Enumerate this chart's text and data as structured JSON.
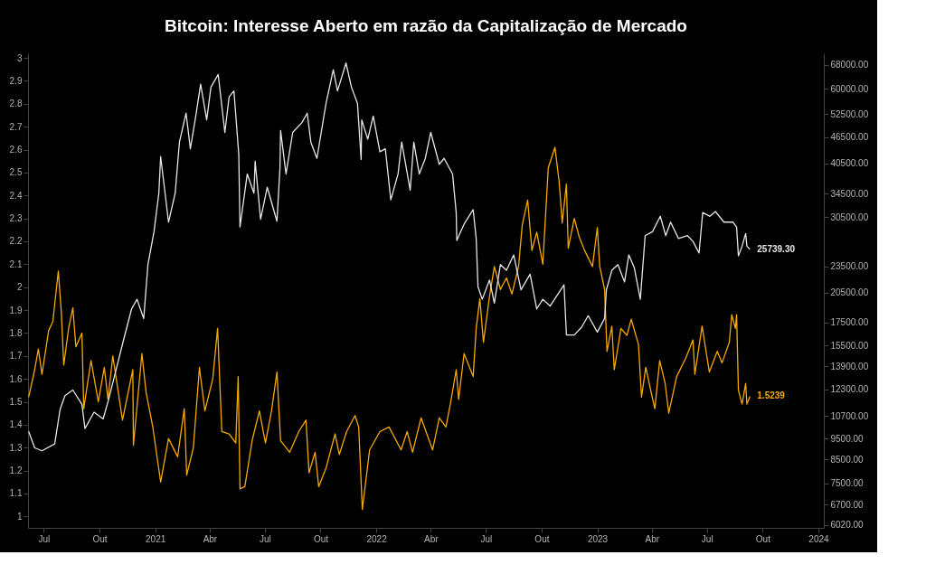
{
  "chart_data": {
    "type": "line",
    "title": "Bitcoin: Interesse Aberto em razão da Capitalização de Mercado",
    "xlim": [
      "2020-06-05",
      "2024-01-10"
    ],
    "xticks": [
      {
        "value": "2020-07-01",
        "label": "Jul"
      },
      {
        "value": "2020-10-01",
        "label": "Out"
      },
      {
        "value": "2021-01-01",
        "label": "2021"
      },
      {
        "value": "2021-04-01",
        "label": "Abr"
      },
      {
        "value": "2021-07-01",
        "label": "Jul"
      },
      {
        "value": "2021-10-01",
        "label": "Out"
      },
      {
        "value": "2022-01-01",
        "label": "2022"
      },
      {
        "value": "2022-04-01",
        "label": "Abr"
      },
      {
        "value": "2022-07-01",
        "label": "Jul"
      },
      {
        "value": "2022-10-01",
        "label": "Out"
      },
      {
        "value": "2023-01-01",
        "label": "2023"
      },
      {
        "value": "2023-04-01",
        "label": "Abr"
      },
      {
        "value": "2023-07-01",
        "label": "Jul"
      },
      {
        "value": "2023-10-01",
        "label": "Out"
      },
      {
        "value": "2024-01-01",
        "label": "2024"
      }
    ],
    "ylim": [
      0.95,
      3.02
    ],
    "yticks": [
      1,
      1.1,
      1.2,
      1.3,
      1.4,
      1.5,
      1.6,
      1.7,
      1.8,
      1.9,
      2,
      2.1,
      2.2,
      2.3,
      2.4,
      2.5,
      2.6,
      2.7,
      2.8,
      2.9,
      3
    ],
    "y2lim": [
      5930,
      72300
    ],
    "y2ticks": [
      {
        "value": 6020,
        "label": "6020.00"
      },
      {
        "value": 6700,
        "label": "6700.00"
      },
      {
        "value": 7500,
        "label": "7500.00"
      },
      {
        "value": 8500,
        "label": "8500.00"
      },
      {
        "value": 9500,
        "label": "9500.00"
      },
      {
        "value": 10700,
        "label": "10700.00"
      },
      {
        "value": 12300,
        "label": "12300.00"
      },
      {
        "value": 13900,
        "label": "13900.00"
      },
      {
        "value": 15500,
        "label": "15500.00"
      },
      {
        "value": 17500,
        "label": "17500.00"
      },
      {
        "value": 20500,
        "label": "20500.00"
      },
      {
        "value": 23500,
        "label": "23500.00"
      },
      {
        "value": 30500,
        "label": "30500.00"
      },
      {
        "value": 34500,
        "label": "34500.00"
      },
      {
        "value": 40500,
        "label": "40500.00"
      },
      {
        "value": 46500,
        "label": "46500.00"
      },
      {
        "value": 52500,
        "label": "52500.00"
      },
      {
        "value": 60000,
        "label": "60000.00"
      },
      {
        "value": 68000,
        "label": "68000.00"
      }
    ],
    "log": "y2",
    "grid": false,
    "line_style": "solid",
    "marker": "none",
    "annotations": [
      "1.5239",
      "25739.30"
    ],
    "series": [
      {
        "color": "#f5a900",
        "x": [
          "2020-06-06",
          "2020-06-16",
          "2020-06-22",
          "2020-06-28",
          "2020-07-09",
          "2020-07-16",
          "2020-07-25",
          "2020-07-30",
          "2020-08-03",
          "2020-08-11",
          "2020-08-18",
          "2020-08-23",
          "2020-09-02",
          "2020-09-05",
          "2020-09-17",
          "2020-09-29",
          "2020-10-09",
          "2020-10-15",
          "2020-10-23",
          "2020-11-08",
          "2020-11-25",
          "2020-11-26",
          "2020-12-10",
          "2020-12-17",
          "2020-12-28",
          "2021-01-10",
          "2021-01-23",
          "2021-02-07",
          "2021-02-18",
          "2021-02-22",
          "2021-03-05",
          "2021-03-15",
          "2021-03-24",
          "2021-04-06",
          "2021-04-14",
          "2021-04-21",
          "2021-05-03",
          "2021-05-14",
          "2021-05-18",
          "2021-05-21",
          "2021-05-29",
          "2021-06-10",
          "2021-06-22",
          "2021-07-02",
          "2021-07-12",
          "2021-07-21",
          "2021-07-27",
          "2021-08-11",
          "2021-08-26",
          "2021-09-07",
          "2021-09-12",
          "2021-09-22",
          "2021-09-28",
          "2021-10-10",
          "2021-10-25",
          "2021-11-01",
          "2021-11-13",
          "2021-11-27",
          "2021-12-03",
          "2021-12-09",
          "2021-12-21",
          "2022-01-07",
          "2022-01-22",
          "2022-02-11",
          "2022-02-21",
          "2022-03-02",
          "2022-03-16",
          "2022-04-04",
          "2022-04-15",
          "2022-04-26",
          "2022-05-04",
          "2022-05-13",
          "2022-05-17",
          "2022-05-26",
          "2022-06-10",
          "2022-06-15",
          "2022-06-21",
          "2022-06-27",
          "2022-07-07",
          "2022-07-15",
          "2022-07-25",
          "2022-08-04",
          "2022-08-13",
          "2022-08-24",
          "2022-08-30",
          "2022-09-08",
          "2022-09-15",
          "2022-09-23",
          "2022-10-03",
          "2022-10-12",
          "2022-10-23",
          "2022-10-30",
          "2022-11-04",
          "2022-11-11",
          "2022-11-14",
          "2022-11-24",
          "2022-12-02",
          "2022-12-11",
          "2022-12-24",
          "2023-01-01",
          "2023-01-05",
          "2023-01-13",
          "2023-01-17",
          "2023-01-25",
          "2023-01-29",
          "2023-02-09",
          "2023-02-19",
          "2023-02-26",
          "2023-03-10",
          "2023-03-15",
          "2023-03-22",
          "2023-03-31",
          "2023-04-06",
          "2023-04-14",
          "2023-04-23",
          "2023-04-29",
          "2023-05-12",
          "2023-05-27",
          "2023-06-08",
          "2023-06-11",
          "2023-06-23",
          "2023-07-05",
          "2023-07-18",
          "2023-07-26",
          "2023-08-07",
          "2023-08-11",
          "2023-08-17",
          "2023-08-19",
          "2023-08-22",
          "2023-08-28",
          "2023-09-03",
          "2023-09-05",
          "2023-09-10"
        ],
        "values": [
          1.52,
          1.64,
          1.73,
          1.62,
          1.81,
          1.85,
          2.07,
          1.89,
          1.66,
          1.82,
          1.91,
          1.74,
          1.8,
          1.47,
          1.68,
          1.5,
          1.65,
          1.51,
          1.7,
          1.42,
          1.64,
          1.31,
          1.71,
          1.54,
          1.39,
          1.15,
          1.34,
          1.26,
          1.47,
          1.18,
          1.3,
          1.65,
          1.46,
          1.6,
          1.82,
          1.37,
          1.36,
          1.32,
          1.61,
          1.12,
          1.13,
          1.33,
          1.46,
          1.32,
          1.46,
          1.63,
          1.33,
          1.28,
          1.37,
          1.42,
          1.19,
          1.28,
          1.13,
          1.21,
          1.36,
          1.27,
          1.37,
          1.44,
          1.39,
          1.03,
          1.29,
          1.37,
          1.39,
          1.29,
          1.37,
          1.28,
          1.43,
          1.29,
          1.43,
          1.39,
          1.5,
          1.64,
          1.51,
          1.71,
          1.61,
          1.82,
          1.95,
          1.76,
          1.96,
          2.09,
          1.99,
          2.04,
          1.97,
          2.09,
          2.27,
          2.38,
          2.16,
          2.24,
          2.1,
          2.52,
          2.61,
          2.46,
          2.28,
          2.45,
          2.17,
          2.3,
          2.22,
          2.16,
          2.09,
          2.26,
          2.09,
          1.99,
          1.72,
          1.83,
          1.64,
          1.82,
          1.79,
          1.86,
          1.75,
          1.52,
          1.65,
          1.54,
          1.47,
          1.68,
          1.58,
          1.45,
          1.61,
          1.69,
          1.77,
          1.62,
          1.83,
          1.63,
          1.72,
          1.67,
          1.76,
          1.88,
          1.82,
          1.88,
          1.55,
          1.49,
          1.58,
          1.49,
          1.5239
        ]
      },
      {
        "color": "#e6e6e6",
        "axis": "y2",
        "x": [
          "2020-06-06",
          "2020-06-16",
          "2020-06-28",
          "2020-07-19",
          "2020-07-28",
          "2020-08-05",
          "2020-08-18",
          "2020-09-02",
          "2020-09-07",
          "2020-09-22",
          "2020-10-07",
          "2020-10-16",
          "2020-10-28",
          "2020-11-09",
          "2020-11-23",
          "2020-12-02",
          "2020-12-13",
          "2020-12-20",
          "2020-12-30",
          "2021-01-07",
          "2021-01-10",
          "2021-01-23",
          "2021-02-03",
          "2021-02-10",
          "2021-02-21",
          "2021-02-28",
          "2021-03-09",
          "2021-03-17",
          "2021-03-27",
          "2021-04-03",
          "2021-04-15",
          "2021-04-26",
          "2021-05-03",
          "2021-05-11",
          "2021-05-19",
          "2021-05-21",
          "2021-06-02",
          "2021-06-13",
          "2021-06-15",
          "2021-06-24",
          "2021-07-05",
          "2021-07-21",
          "2021-07-26",
          "2021-07-27",
          "2021-08-05",
          "2021-08-16",
          "2021-08-31",
          "2021-09-09",
          "2021-09-15",
          "2021-09-25",
          "2021-10-10",
          "2021-10-22",
          "2021-10-29",
          "2021-11-12",
          "2021-11-21",
          "2021-12-01",
          "2021-12-07",
          "2021-12-08",
          "2021-12-18",
          "2021-12-27",
          "2022-01-07",
          "2022-01-16",
          "2022-01-25",
          "2022-02-06",
          "2022-02-12",
          "2022-02-26",
          "2022-03-04",
          "2022-03-13",
          "2022-03-23",
          "2022-04-01",
          "2022-04-15",
          "2022-04-23",
          "2022-05-07",
          "2022-05-13",
          "2022-05-14",
          "2022-05-26",
          "2022-06-10",
          "2022-06-15",
          "2022-06-18",
          "2022-06-25",
          "2022-07-07",
          "2022-07-15",
          "2022-07-25",
          "2022-08-04",
          "2022-08-16",
          "2022-08-28",
          "2022-09-12",
          "2022-09-23",
          "2022-10-03",
          "2022-10-15",
          "2022-11-07",
          "2022-11-11",
          "2022-11-24",
          "2022-12-06",
          "2022-12-17",
          "2023-01-01",
          "2023-01-13",
          "2023-01-16",
          "2023-01-25",
          "2023-02-04",
          "2023-02-15",
          "2023-02-22",
          "2023-03-03",
          "2023-03-13",
          "2023-03-21",
          "2023-04-02",
          "2023-04-15",
          "2023-04-24",
          "2023-05-02",
          "2023-05-15",
          "2023-05-30",
          "2023-06-08",
          "2023-06-18",
          "2023-06-24",
          "2023-07-06",
          "2023-07-15",
          "2023-07-29",
          "2023-08-13",
          "2023-08-19",
          "2023-08-22",
          "2023-08-28",
          "2023-09-03",
          "2023-09-05",
          "2023-09-10"
        ],
        "values": [
          9860,
          9040,
          8900,
          9230,
          11080,
          11900,
          12260,
          11370,
          10010,
          10910,
          10530,
          11660,
          13580,
          15820,
          18800,
          19780,
          17870,
          23750,
          28230,
          34600,
          41960,
          29700,
          34600,
          45290,
          52740,
          43700,
          51950,
          61460,
          50900,
          60510,
          64660,
          47660,
          57500,
          59280,
          42390,
          28950,
          38290,
          34600,
          40920,
          30150,
          35690,
          29850,
          39490,
          48140,
          38290,
          47660,
          50130,
          52740,
          45290,
          41560,
          55480,
          66290,
          59280,
          68700,
          60510,
          55480,
          41320,
          50900,
          45990,
          51950,
          43040,
          43700,
          33390,
          38290,
          45290,
          35140,
          45290,
          38290,
          41560,
          47660,
          40290,
          41560,
          38290,
          31250,
          26970,
          29400,
          31720,
          27250,
          21130,
          19780,
          21890,
          19380,
          23750,
          23040,
          24990,
          20800,
          22570,
          18800,
          19780,
          19090,
          21350,
          16390,
          16390,
          17070,
          18140,
          16640,
          17870,
          20800,
          23040,
          23750,
          21670,
          24990,
          23390,
          19780,
          27660,
          28230,
          30630,
          27660,
          29700,
          27250,
          27660,
          26830,
          25240,
          31250,
          30630,
          31410,
          29700,
          29700,
          28950,
          24860,
          26160,
          27970,
          26160,
          25739.3
        ]
      }
    ]
  }
}
